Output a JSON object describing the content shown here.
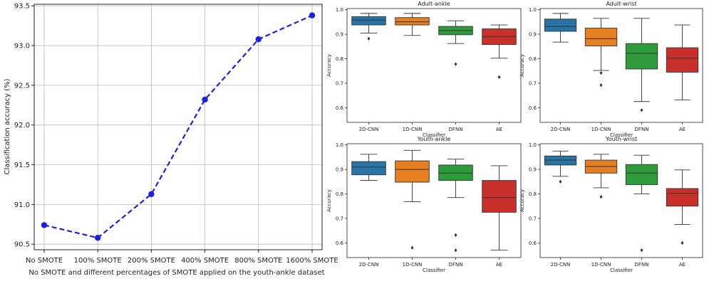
{
  "chart_data": [
    {
      "type": "line",
      "title": "",
      "xlabel": "No SMOTE and different percentages of SMOTE applied on the youth-ankle dataset",
      "ylabel": "Classification accuracy (%)",
      "categories": [
        "No SMOTE",
        "100% SMOTE",
        "200% SMOTE",
        "400% SMOTE",
        "800% SMOTE",
        "1600% SMOTE"
      ],
      "values": [
        90.74,
        90.58,
        91.13,
        92.32,
        93.08,
        93.38
      ],
      "ylim": [
        90.43,
        93.52
      ],
      "yticks": [
        "90.5",
        "91.0",
        "91.5",
        "92.0",
        "92.5",
        "93.0",
        "93.5"
      ],
      "grid": true,
      "line_color": "#1f1fe0",
      "line_style": "dashed"
    },
    {
      "type": "box",
      "title": "Adult-ankle",
      "xlabel": "Classifier",
      "ylabel": "Accuracy",
      "categories": [
        "2D-CNN",
        "1D-CNN",
        "DFNN",
        "AE"
      ],
      "ylim": [
        0.54,
        1.005
      ],
      "yticks": [
        "0.6",
        "0.7",
        "0.8",
        "0.9",
        "1.0"
      ],
      "boxes": [
        {
          "whislo": 0.905,
          "q1": 0.938,
          "med": 0.958,
          "q3": 0.972,
          "whishi": 0.985,
          "fliers": [
            0.882
          ]
        },
        {
          "whislo": 0.895,
          "q1": 0.938,
          "med": 0.951,
          "q3": 0.968,
          "whishi": 0.985,
          "fliers": []
        },
        {
          "whislo": 0.862,
          "q1": 0.898,
          "med": 0.915,
          "q3": 0.932,
          "whishi": 0.955,
          "fliers": [
            0.778
          ]
        },
        {
          "whislo": 0.802,
          "q1": 0.858,
          "med": 0.891,
          "q3": 0.922,
          "whishi": 0.938,
          "fliers": [
            0.725
          ]
        }
      ]
    },
    {
      "type": "box",
      "title": "Adult-wrist",
      "xlabel": "Classifier",
      "ylabel": "Accuracy",
      "categories": [
        "2D-CNN",
        "1D-CNN",
        "DFNN",
        "AE"
      ],
      "ylim": [
        0.54,
        1.005
      ],
      "yticks": [
        "0.6",
        "0.7",
        "0.8",
        "0.9",
        "1.0"
      ],
      "boxes": [
        {
          "whislo": 0.868,
          "q1": 0.912,
          "med": 0.932,
          "q3": 0.962,
          "whishi": 0.985,
          "fliers": []
        },
        {
          "whislo": 0.752,
          "q1": 0.852,
          "med": 0.882,
          "q3": 0.925,
          "whishi": 0.965,
          "fliers": [
            0.742,
            0.692
          ]
        },
        {
          "whislo": 0.625,
          "q1": 0.758,
          "med": 0.822,
          "q3": 0.862,
          "whishi": 0.965,
          "fliers": [
            0.59
          ]
        },
        {
          "whislo": 0.632,
          "q1": 0.745,
          "med": 0.802,
          "q3": 0.845,
          "whishi": 0.938,
          "fliers": []
        }
      ]
    },
    {
      "type": "box",
      "title": "Youth-ankle",
      "xlabel": "Classifier",
      "ylabel": "Accuracy",
      "categories": [
        "2D-CNN",
        "1D-CNN",
        "DFNN",
        "AE"
      ],
      "ylim": [
        0.54,
        1.005
      ],
      "yticks": [
        "0.6",
        "0.7",
        "0.8",
        "0.9",
        "1.0"
      ],
      "boxes": [
        {
          "whislo": 0.855,
          "q1": 0.878,
          "med": 0.91,
          "q3": 0.932,
          "whishi": 0.962,
          "fliers": []
        },
        {
          "whislo": 0.768,
          "q1": 0.848,
          "med": 0.9,
          "q3": 0.935,
          "whishi": 0.978,
          "fliers": [
            0.58
          ]
        },
        {
          "whislo": 0.785,
          "q1": 0.855,
          "med": 0.885,
          "q3": 0.918,
          "whishi": 0.942,
          "fliers": [
            0.632,
            0.57
          ]
        },
        {
          "whislo": 0.57,
          "q1": 0.725,
          "med": 0.785,
          "q3": 0.855,
          "whishi": 0.915,
          "fliers": []
        }
      ]
    },
    {
      "type": "box",
      "title": "Youth-wrist",
      "xlabel": "Classifier",
      "ylabel": "Accuracy",
      "categories": [
        "2D-CNN",
        "1D-CNN",
        "DFNN",
        "AE"
      ],
      "ylim": [
        0.54,
        1.005
      ],
      "yticks": [
        "0.6",
        "0.7",
        "0.8",
        "0.9",
        "1.0"
      ],
      "boxes": [
        {
          "whislo": 0.872,
          "q1": 0.918,
          "med": 0.938,
          "q3": 0.955,
          "whishi": 0.975,
          "fliers": [
            0.85
          ]
        },
        {
          "whislo": 0.825,
          "q1": 0.885,
          "med": 0.912,
          "q3": 0.938,
          "whishi": 0.962,
          "fliers": [
            0.788
          ]
        },
        {
          "whislo": 0.8,
          "q1": 0.838,
          "med": 0.885,
          "q3": 0.92,
          "whishi": 0.958,
          "fliers": [
            0.57
          ]
        },
        {
          "whislo": 0.675,
          "q1": 0.75,
          "med": 0.802,
          "q3": 0.822,
          "whishi": 0.898,
          "fliers": [
            0.6
          ]
        }
      ]
    }
  ],
  "colors": {
    "box_fills": [
      "#2874a6",
      "#e67e22",
      "#2e9b3a",
      "#c9302c"
    ],
    "grid": "#bbbbbb",
    "axis": "#222222"
  }
}
